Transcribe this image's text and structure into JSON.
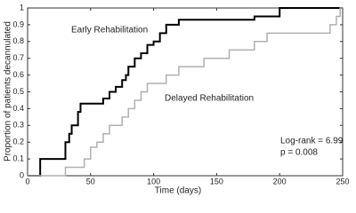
{
  "chart_data": {
    "type": "step",
    "xlabel": "Time (days)",
    "ylabel": "Proportion of patients decannulated",
    "xlim": [
      0,
      250
    ],
    "xticks": [
      0,
      50,
      100,
      150,
      200,
      250
    ],
    "ylim": [
      0,
      1
    ],
    "yticks": [
      0,
      0.1,
      0.2,
      0.3,
      0.4,
      0.5,
      0.6,
      0.7,
      0.8,
      0.9,
      1
    ],
    "series": [
      {
        "name": "Early Rehabilitation",
        "color": "#000000",
        "x": [
          0,
          10,
          30,
          33,
          35,
          40,
          42,
          60,
          65,
          70,
          75,
          78,
          80,
          85,
          90,
          95,
          100,
          105,
          110,
          120,
          180,
          200,
          250
        ],
        "values": [
          0,
          0.1,
          0.2,
          0.25,
          0.3,
          0.38,
          0.43,
          0.46,
          0.5,
          0.53,
          0.57,
          0.6,
          0.65,
          0.7,
          0.73,
          0.78,
          0.8,
          0.85,
          0.9,
          0.93,
          0.95,
          1,
          1
        ]
      },
      {
        "name": "Delayed Rehabilitation",
        "color": "#b0b0b0",
        "x": [
          0,
          30,
          45,
          50,
          55,
          60,
          65,
          75,
          80,
          85,
          90,
          95,
          110,
          120,
          140,
          160,
          180,
          190,
          240,
          245,
          248,
          250
        ],
        "values": [
          0,
          0.05,
          0.1,
          0.17,
          0.2,
          0.25,
          0.3,
          0.35,
          0.4,
          0.45,
          0.5,
          0.55,
          0.6,
          0.65,
          0.7,
          0.75,
          0.8,
          0.85,
          0.9,
          0.95,
          1,
          1
        ]
      }
    ],
    "annotations": [
      "Log-rank = 6.99",
      "p = 0.008"
    ]
  }
}
